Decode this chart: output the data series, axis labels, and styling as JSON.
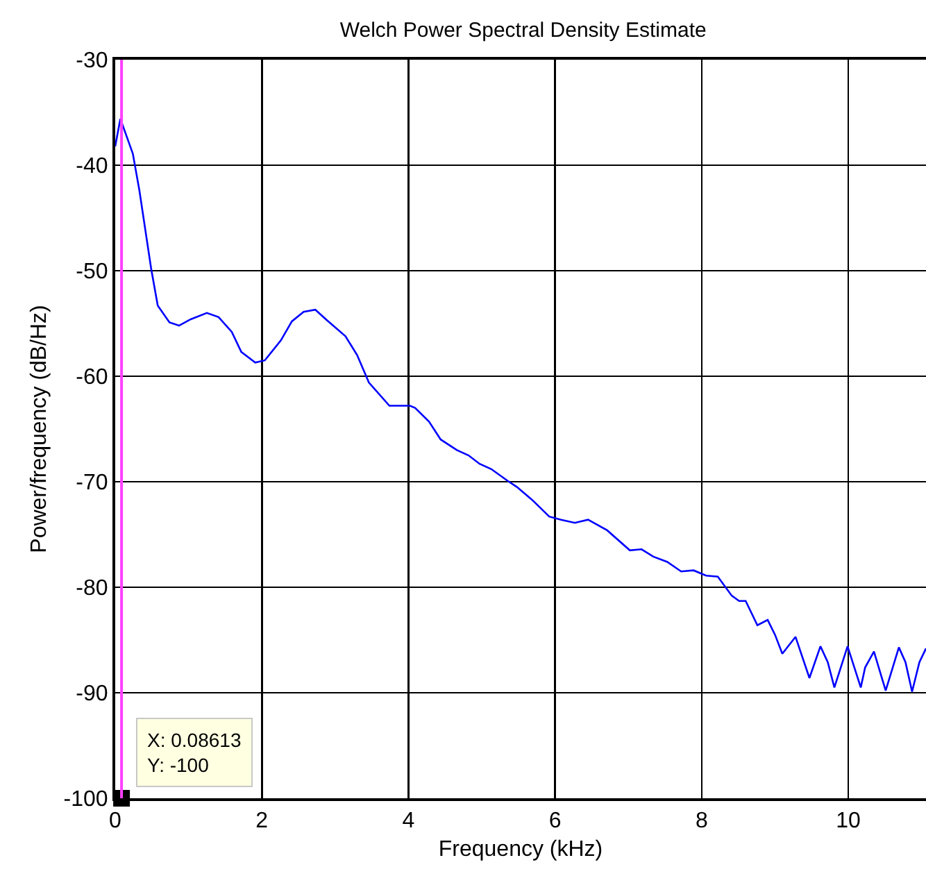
{
  "chart_data": {
    "type": "line",
    "title": "Welch Power Spectral Density Estimate",
    "xlabel": "Frequency (kHz)",
    "ylabel": "Power/frequency (dB/Hz)",
    "xlim": [
      0,
      11.06
    ],
    "xticks": [
      0,
      2,
      4,
      6,
      8,
      10
    ],
    "ylim": [
      -100,
      -30
    ],
    "yticks": [
      -100,
      -90,
      -80,
      -70,
      -60,
      -50,
      -40,
      -30
    ],
    "grid": true,
    "series": [
      {
        "color": "#0000ff",
        "marker": "none",
        "x": [
          0,
          0.07,
          0.24,
          0.33,
          0.49,
          0.58,
          0.74,
          0.87,
          1.03,
          1.25,
          1.41,
          1.59,
          1.72,
          1.91,
          2.04,
          2.26,
          2.41,
          2.57,
          2.73,
          2.89,
          3.14,
          3.3,
          3.46,
          3.74,
          4.02,
          4.09,
          4.28,
          4.44,
          4.66,
          4.82,
          4.97,
          5.13,
          5.35,
          5.48,
          5.7,
          5.92,
          6.08,
          6.27,
          6.45,
          6.71,
          7.02,
          7.18,
          7.34,
          7.53,
          7.72,
          7.89,
          8.06,
          8.22,
          8.41,
          8.51,
          8.6,
          8.76,
          8.9,
          9.0,
          9.1,
          9.28,
          9.47,
          9.62,
          9.72,
          9.81,
          9.99,
          10.17,
          10.23,
          10.35,
          10.51,
          10.69,
          10.78,
          10.87,
          10.97,
          11.06
        ],
        "values": [
          -38.2,
          -35.6,
          -38.9,
          -42.4,
          -49.8,
          -53.3,
          -54.9,
          -55.2,
          -54.6,
          -54.0,
          -54.4,
          -55.8,
          -57.7,
          -58.7,
          -58.5,
          -56.6,
          -54.8,
          -53.9,
          -53.7,
          -54.7,
          -56.2,
          -58.0,
          -60.6,
          -62.8,
          -62.8,
          -63.0,
          -64.3,
          -66.0,
          -67.0,
          -67.5,
          -68.3,
          -68.8,
          -69.9,
          -70.5,
          -71.8,
          -73.3,
          -73.6,
          -73.9,
          -73.6,
          -74.6,
          -76.5,
          -76.4,
          -77.1,
          -77.6,
          -78.5,
          -78.4,
          -78.9,
          -79.0,
          -80.8,
          -81.3,
          -81.3,
          -83.6,
          -83.1,
          -84.5,
          -86.3,
          -84.7,
          -88.6,
          -85.6,
          -87.1,
          -89.5,
          -85.6,
          -89.5,
          -87.6,
          -86.1,
          -89.8,
          -85.7,
          -87.1,
          -89.9,
          -87.1,
          -85.8
        ]
      },
      {
        "type": "scatter",
        "color": "#000000",
        "marker": "square",
        "x": [
          0.08613
        ],
        "values": [
          -100
        ]
      }
    ],
    "ref_lines": [
      {
        "axis": "x",
        "value": 0.08613,
        "color": "#ff40ff",
        "line_style": "solid"
      }
    ],
    "annotations": [
      {
        "text": "X: 0.08613\nY: -100",
        "x": 0.08613,
        "y": -100
      }
    ]
  }
}
